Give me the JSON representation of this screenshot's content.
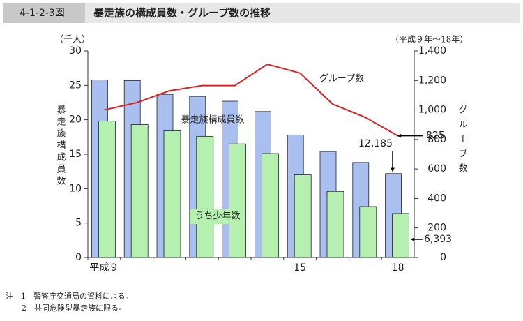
{
  "figure_number": "4-1-2-3図",
  "notes": [
    "注　1　警察庁交通局の資料による。",
    "2　共同危険型暴走族に限る。"
  ],
  "chart_data": {
    "type": "bar-line",
    "title": "暴走族の構成員数・グループ数の推移",
    "y_unit": "（千人）",
    "x_range_label": "（平成９年～18年）",
    "y_label": "暴走族構成員数",
    "y2_label": "グループ数",
    "categories": [
      "平成９",
      null,
      null,
      null,
      null,
      null,
      "15",
      null,
      null,
      "18"
    ],
    "series": [
      {
        "name": "暴走族構成員数",
        "type": "bar",
        "color": "#a8bff0",
        "values": [
          25.8,
          25.7,
          23.7,
          23.4,
          22.7,
          21.2,
          17.8,
          15.4,
          13.8,
          12.185
        ],
        "value_labels": [
          null,
          null,
          null,
          null,
          null,
          null,
          null,
          null,
          null,
          "12,185"
        ]
      },
      {
        "name": "うち少年数",
        "type": "bar",
        "color": "#b5f0b0",
        "values": [
          19.8,
          19.3,
          18.4,
          17.6,
          16.5,
          15.1,
          12.0,
          9.6,
          7.4,
          6.393
        ],
        "value_labels": [
          null,
          null,
          null,
          null,
          null,
          null,
          null,
          null,
          null,
          "6,393"
        ]
      },
      {
        "name": "グループ数",
        "type": "line",
        "axis": "y2",
        "color": "#e02020",
        "values": [
          1000,
          1050,
          1130,
          1165,
          1165,
          1310,
          1250,
          1040,
          950,
          825
        ]
      }
    ],
    "ylim": [
      0,
      30
    ],
    "yticks": [
      0,
      5,
      10,
      15,
      20,
      25,
      30
    ],
    "y2lim": [
      0,
      1400
    ],
    "y2ticks": [
      0,
      200,
      400,
      600,
      800,
      {
        "value": 1000,
        "label": "1,000"
      },
      {
        "value": 1200,
        "label": "1,200"
      },
      {
        "value": 1400,
        "label": "1,400"
      }
    ]
  }
}
